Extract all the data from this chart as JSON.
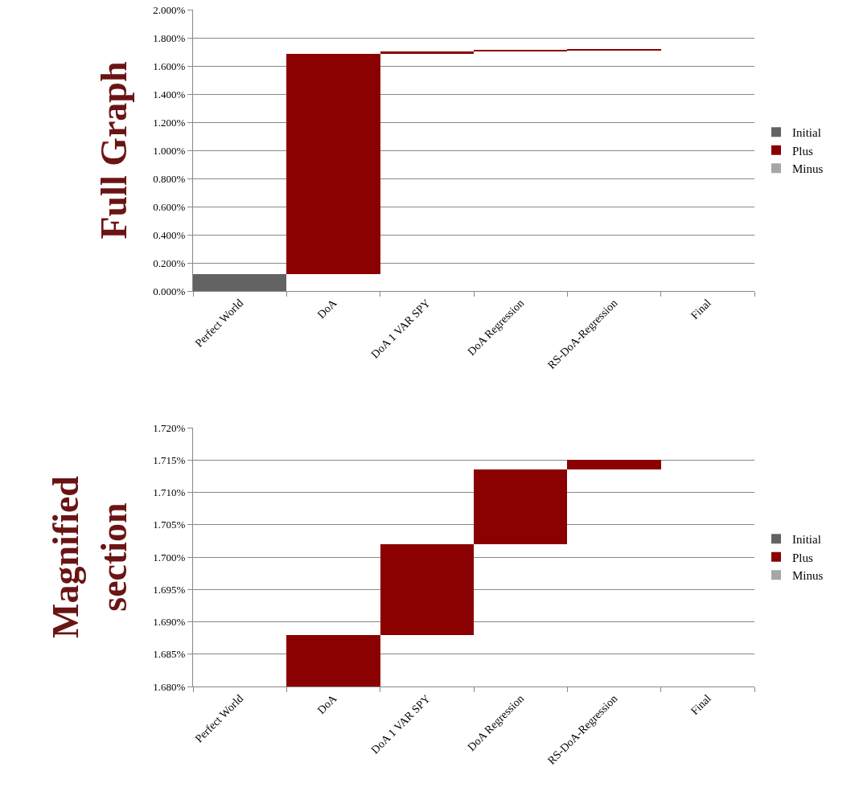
{
  "chart_data": [
    {
      "type": "bar",
      "ylabel": "Full Graph",
      "categories": [
        "Perfect World",
        "DoA",
        "DoA 1 VAR SPY",
        "DoA Regression",
        "RS-DoA-Regression",
        "Final"
      ],
      "series": [
        {
          "name": "Initial",
          "color": "#636363",
          "values": [
            0.12,
            null,
            null,
            null,
            null,
            null
          ],
          "base": [
            0,
            null,
            null,
            null,
            null,
            null
          ]
        },
        {
          "name": "Plus",
          "color": "#8b0000",
          "values": [
            null,
            1.568,
            0.014,
            0.0115,
            0.0015,
            null
          ],
          "base": [
            null,
            0.12,
            1.688,
            1.702,
            1.7135,
            null
          ]
        },
        {
          "name": "Minus",
          "color": "#a6a6a6",
          "values": [
            null,
            null,
            null,
            null,
            null,
            null
          ]
        }
      ],
      "ylim": [
        0,
        2
      ],
      "yticks": [
        {
          "value": 0,
          "label": "0.000%"
        },
        {
          "value": 0.2,
          "label": "0.200%"
        },
        {
          "value": 0.4,
          "label": "0.400%"
        },
        {
          "value": 0.6,
          "label": "0.600%"
        },
        {
          "value": 0.8,
          "label": "0.800%"
        },
        {
          "value": 1,
          "label": "1.000%"
        },
        {
          "value": 1.2,
          "label": "1.200%"
        },
        {
          "value": 1.4,
          "label": "1.400%"
        },
        {
          "value": 1.6,
          "label": "1.600%"
        },
        {
          "value": 1.8,
          "label": "1.800%"
        },
        {
          "value": 2,
          "label": "2.000%"
        }
      ],
      "grid": "y",
      "legend": "right"
    },
    {
      "type": "bar",
      "ylabel": "Magnified section",
      "categories": [
        "Perfect World",
        "DoA",
        "DoA 1 VAR SPY",
        "DoA Regression",
        "RS-DoA-Regression",
        "Final"
      ],
      "series": [
        {
          "name": "Initial",
          "color": "#636363",
          "values": [
            null,
            null,
            null,
            null,
            null,
            null
          ]
        },
        {
          "name": "Plus",
          "color": "#8b0000",
          "values": [
            null,
            0.008,
            0.014,
            0.0115,
            0.0015,
            null
          ],
          "base": [
            null,
            1.68,
            1.688,
            1.702,
            1.7135,
            null
          ]
        },
        {
          "name": "Minus",
          "color": "#a6a6a6",
          "values": [
            null,
            null,
            null,
            null,
            null,
            null
          ]
        }
      ],
      "ylim": [
        1.68,
        1.72
      ],
      "yticks": [
        {
          "value": 1.68,
          "label": "1.680%"
        },
        {
          "value": 1.685,
          "label": "1.685%"
        },
        {
          "value": 1.69,
          "label": "1.690%"
        },
        {
          "value": 1.695,
          "label": "1.695%"
        },
        {
          "value": 1.7,
          "label": "1.700%"
        },
        {
          "value": 1.705,
          "label": "1.705%"
        },
        {
          "value": 1.71,
          "label": "1.710%"
        },
        {
          "value": 1.715,
          "label": "1.715%"
        },
        {
          "value": 1.72,
          "label": "1.720%"
        }
      ],
      "grid": "y",
      "legend": "right"
    }
  ]
}
